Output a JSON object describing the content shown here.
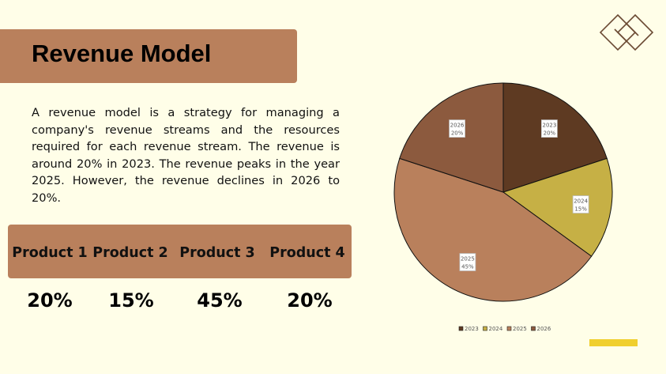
{
  "title": "Revenue Model",
  "description": "A revenue model is a strategy for managing a company's revenue streams and the resources required for each revenue stream. The revenue is around 20% in 2023. The revenue peaks in the year 2025. However, the revenue declines in 2026 to 20%.",
  "products": [
    {
      "label": "Product 1",
      "value": "20%"
    },
    {
      "label": "Product 2",
      "value": "15%"
    },
    {
      "label": "Product 3",
      "value": "45%"
    },
    {
      "label": "Product 4",
      "value": "20%"
    }
  ],
  "chart_data": {
    "type": "pie",
    "categories": [
      "2023",
      "2024",
      "2025",
      "2026"
    ],
    "values": [
      20,
      15,
      45,
      20
    ],
    "labels": [
      "20%",
      "15%",
      "45%",
      "20%"
    ],
    "colors": [
      "#5e3a22",
      "#c6b045",
      "#b9805c",
      "#8c5a3e"
    ],
    "legend": "bottom"
  }
}
